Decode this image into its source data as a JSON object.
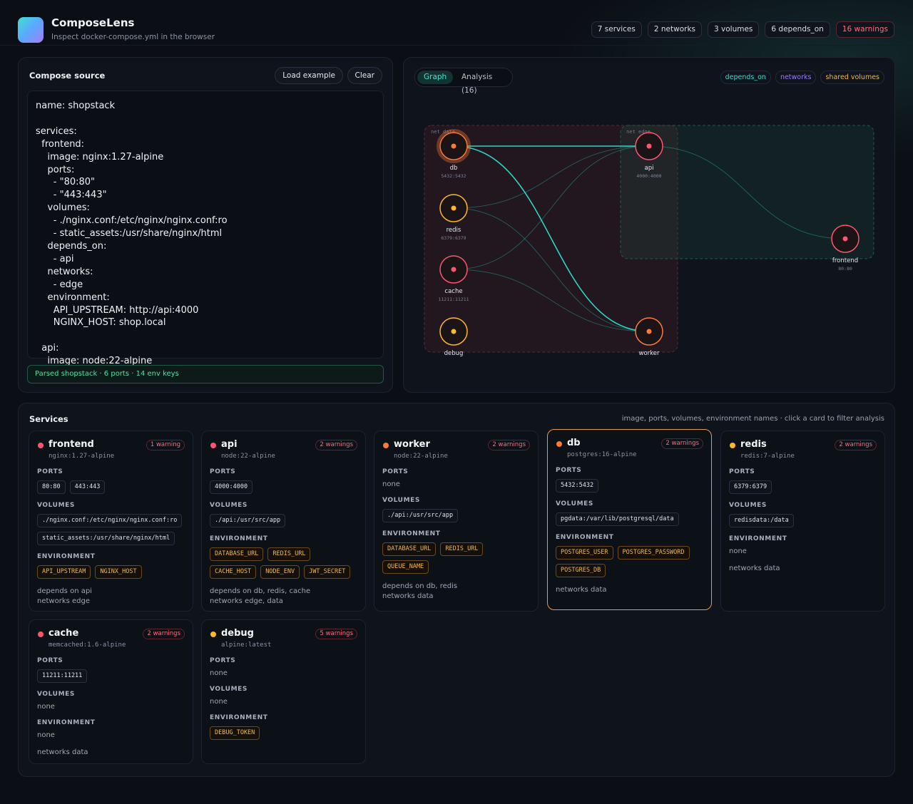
{
  "app": {
    "title": "ComposeLens",
    "subtitle": "Inspect docker-compose.yml in the browser"
  },
  "summary_chips": [
    "7 services",
    "2 networks",
    "3 volumes",
    "6 depends_on",
    "16 warnings"
  ],
  "source": {
    "title": "Compose source",
    "load_label": "Load example",
    "clear_label": "Clear",
    "yaml": "name: shopstack\n\nservices:\n  frontend:\n    image: nginx:1.27-alpine\n    ports:\n      - \"80:80\"\n      - \"443:443\"\n    volumes:\n      - ./nginx.conf:/etc/nginx/nginx.conf:ro\n      - static_assets:/usr/share/nginx/html\n    depends_on:\n      - api\n    networks:\n      - edge\n    environment:\n      API_UPSTREAM: http://api:4000\n      NGINX_HOST: shop.local\n\n  api:\n    image: node:22-alpine",
    "status": "Parsed shopstack · 6 ports · 14 env keys"
  },
  "graph": {
    "tabs": [
      "Graph",
      "Analysis (16)"
    ],
    "legend": [
      "depends_on",
      "networks",
      "shared volumes"
    ],
    "network_labels": [
      "net data",
      "net edge"
    ],
    "colors": {
      "danger": "#ff5470",
      "warning": "#ffb627",
      "caution": "#ff7a35",
      "depends": "#2fd6c6"
    },
    "nodes": [
      {
        "id": "db",
        "label": "db",
        "ports": "5432:5432",
        "status": "caution",
        "selected": true
      },
      {
        "id": "redis",
        "label": "redis",
        "ports": "6379:6379",
        "status": "warning"
      },
      {
        "id": "cache",
        "label": "cache",
        "ports": "11211:11211",
        "status": "danger"
      },
      {
        "id": "debug",
        "label": "debug",
        "ports": "",
        "status": "warning"
      },
      {
        "id": "api",
        "label": "api",
        "ports": "4000:4000",
        "status": "danger"
      },
      {
        "id": "worker",
        "label": "worker",
        "ports": "",
        "status": "caution"
      },
      {
        "id": "frontend",
        "label": "frontend",
        "ports": "80:80",
        "status": "danger"
      }
    ]
  },
  "services_panel": {
    "title": "Services",
    "hint": "image, ports, volumes, environment names · click a card to filter analysis",
    "labels": {
      "ports": "PORTS",
      "volumes": "VOLUMES",
      "environment": "ENVIRONMENT",
      "none": "none"
    },
    "cards": [
      {
        "name": "frontend",
        "image": "nginx:1.27-alpine",
        "warnings": "1 warning",
        "status": "danger",
        "ports": [
          "80:80",
          "443:443"
        ],
        "volumes": [
          "./nginx.conf:/etc/nginx/nginx.conf:ro",
          "static_assets:/usr/share/nginx/html"
        ],
        "env": [
          "API_UPSTREAM",
          "NGINX_HOST"
        ],
        "meta": [
          "depends on api",
          "networks edge"
        ]
      },
      {
        "name": "api",
        "image": "node:22-alpine",
        "warnings": "2 warnings",
        "status": "danger",
        "ports": [
          "4000:4000"
        ],
        "volumes": [
          "./api:/usr/src/app"
        ],
        "env": [
          "DATABASE_URL",
          "REDIS_URL",
          "CACHE_HOST",
          "NODE_ENV",
          "JWT_SECRET"
        ],
        "meta": [
          "depends on db, redis, cache",
          "networks edge, data"
        ]
      },
      {
        "name": "worker",
        "image": "node:22-alpine",
        "warnings": "2 warnings",
        "status": "caution",
        "ports": [],
        "volumes": [
          "./api:/usr/src/app"
        ],
        "env": [
          "DATABASE_URL",
          "REDIS_URL",
          "QUEUE_NAME"
        ],
        "meta": [
          "depends on db, redis",
          "networks data"
        ]
      },
      {
        "name": "db",
        "image": "postgres:16-alpine",
        "warnings": "2 warnings",
        "status": "caution",
        "selected": true,
        "ports": [
          "5432:5432"
        ],
        "volumes": [
          "pgdata:/var/lib/postgresql/data"
        ],
        "env": [
          "POSTGRES_USER",
          "POSTGRES_PASSWORD",
          "POSTGRES_DB"
        ],
        "meta": [
          "networks data"
        ]
      },
      {
        "name": "redis",
        "image": "redis:7-alpine",
        "warnings": "2 warnings",
        "status": "warning",
        "ports": [
          "6379:6379"
        ],
        "volumes": [
          "redisdata:/data"
        ],
        "env": [],
        "meta": [
          "networks data"
        ]
      },
      {
        "name": "cache",
        "image": "memcached:1.6-alpine",
        "warnings": "2 warnings",
        "status": "danger",
        "ports": [
          "11211:11211"
        ],
        "volumes": [],
        "env": [],
        "meta": [
          "networks data"
        ]
      },
      {
        "name": "debug",
        "image": "alpine:latest",
        "warnings": "5 warnings",
        "status": "warning",
        "ports": [],
        "volumes": [],
        "env": [
          "DEBUG_TOKEN"
        ],
        "meta": []
      }
    ]
  }
}
